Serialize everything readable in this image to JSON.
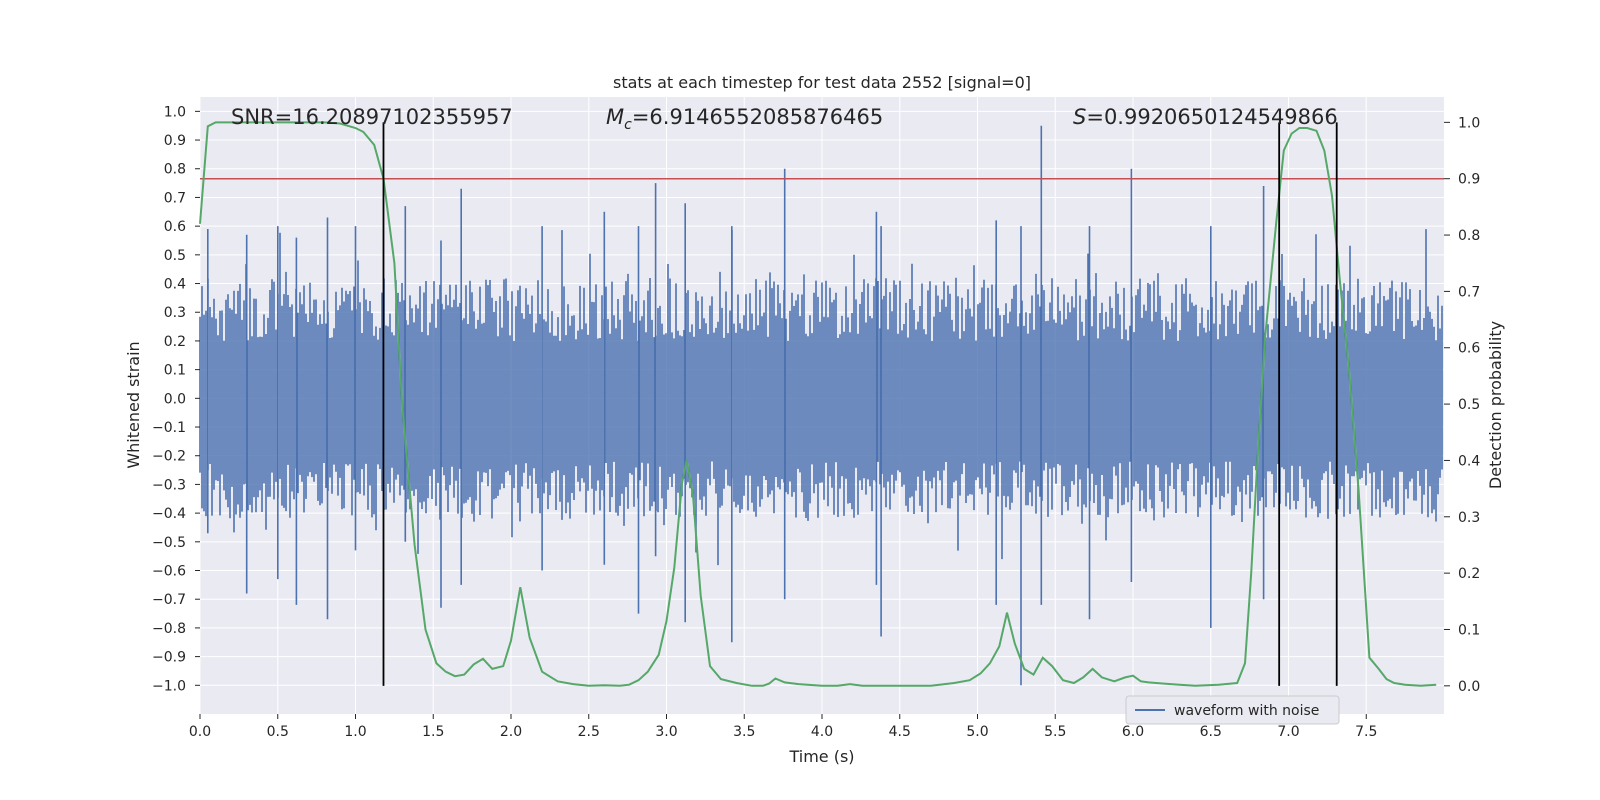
{
  "chart_data": {
    "type": "line",
    "title": "stats at each timestep for test data 2552 [signal=0]",
    "xlabel": "Time (s)",
    "ylabel": "Whitened strain",
    "y2label": "Detection probability",
    "xlim": [
      0,
      8
    ],
    "ylim": [
      -1.1,
      1.05
    ],
    "y2lim": [
      -0.05,
      1.045
    ],
    "x_ticks": [
      "0.0",
      "0.5",
      "1.0",
      "1.5",
      "2.0",
      "2.5",
      "3.0",
      "3.5",
      "4.0",
      "4.5",
      "5.0",
      "5.5",
      "6.0",
      "6.5",
      "7.0",
      "7.5"
    ],
    "y_ticks": [
      "1.0",
      "0.9",
      "0.8",
      "0.7",
      "0.6",
      "0.5",
      "0.4",
      "0.3",
      "0.2",
      "0.1",
      "0.0",
      "−0.1",
      "−0.2",
      "−0.3",
      "−0.4",
      "−0.5",
      "−0.6",
      "−0.7",
      "−0.8",
      "−0.9",
      "−1.0"
    ],
    "y2_ticks": [
      "1.0",
      "0.9",
      "0.8",
      "0.7",
      "0.6",
      "0.5",
      "0.4",
      "0.3",
      "0.2",
      "0.1",
      "0.0"
    ],
    "annotations": {
      "snr": "SNR=16.20897102355957",
      "mc_label": "M",
      "mc_sub": "c",
      "mc_value": "=6.9146552085876465",
      "s_label": "S",
      "s_value": "=0.9920650124549866"
    },
    "legend": {
      "label": "waveform with noise",
      "position": "lower-right"
    },
    "threshold": 0.9,
    "vertical_lines": [
      1.18,
      6.94,
      7.31
    ],
    "waveform_spikes": [
      {
        "x": 0.05,
        "hi": 0.59,
        "lo": -0.47
      },
      {
        "x": 0.3,
        "hi": 0.57,
        "lo": -0.68
      },
      {
        "x": 0.5,
        "hi": 0.6,
        "lo": -0.63
      },
      {
        "x": 0.62,
        "hi": 0.56,
        "lo": -0.72
      },
      {
        "x": 0.82,
        "hi": 0.63,
        "lo": -0.77
      },
      {
        "x": 1.0,
        "hi": 0.6,
        "lo": -0.53
      },
      {
        "x": 1.32,
        "hi": 0.67,
        "lo": -0.5
      },
      {
        "x": 1.55,
        "hi": 0.55,
        "lo": -0.73
      },
      {
        "x": 1.68,
        "hi": 0.73,
        "lo": -0.65
      },
      {
        "x": 2.2,
        "hi": 0.6,
        "lo": -0.6
      },
      {
        "x": 2.6,
        "hi": 0.65,
        "lo": -0.58
      },
      {
        "x": 2.82,
        "hi": 0.6,
        "lo": -0.75
      },
      {
        "x": 2.93,
        "hi": 0.75,
        "lo": -0.55
      },
      {
        "x": 3.12,
        "hi": 0.68,
        "lo": -0.78
      },
      {
        "x": 3.42,
        "hi": 0.6,
        "lo": -0.85
      },
      {
        "x": 3.76,
        "hi": 0.8,
        "lo": -0.7
      },
      {
        "x": 4.35,
        "hi": 0.65,
        "lo": -0.65
      },
      {
        "x": 4.38,
        "hi": 0.6,
        "lo": -0.83
      },
      {
        "x": 5.12,
        "hi": 0.62,
        "lo": -0.72
      },
      {
        "x": 5.28,
        "hi": 0.6,
        "lo": -1.0
      },
      {
        "x": 5.41,
        "hi": 0.95,
        "lo": -0.72
      },
      {
        "x": 5.72,
        "hi": 0.6,
        "lo": -0.77
      },
      {
        "x": 5.99,
        "hi": 0.8,
        "lo": -0.64
      },
      {
        "x": 6.5,
        "hi": 0.6,
        "lo": -0.8
      },
      {
        "x": 6.84,
        "hi": 0.74,
        "lo": -0.7
      }
    ],
    "detection_probability": {
      "x": [
        0.0,
        0.05,
        0.1,
        0.15,
        0.2,
        0.4,
        0.6,
        0.8,
        0.9,
        1.0,
        1.05,
        1.12,
        1.18,
        1.25,
        1.3,
        1.38,
        1.45,
        1.52,
        1.58,
        1.64,
        1.7,
        1.76,
        1.82,
        1.88,
        1.95,
        2.0,
        2.06,
        2.12,
        2.2,
        2.3,
        2.4,
        2.5,
        2.6,
        2.7,
        2.76,
        2.82,
        2.88,
        2.95,
        3.0,
        3.05,
        3.1,
        3.13,
        3.17,
        3.22,
        3.28,
        3.35,
        3.45,
        3.55,
        3.62,
        3.66,
        3.7,
        3.76,
        3.85,
        4.0,
        4.1,
        4.18,
        4.26,
        4.36,
        4.5,
        4.7,
        4.85,
        4.95,
        5.02,
        5.08,
        5.14,
        5.19,
        5.24,
        5.3,
        5.36,
        5.42,
        5.48,
        5.55,
        5.62,
        5.68,
        5.74,
        5.8,
        5.88,
        5.95,
        6.0,
        6.05,
        6.1,
        6.2,
        6.3,
        6.4,
        6.55,
        6.67,
        6.72,
        6.76,
        6.8,
        6.85,
        6.92,
        6.97,
        7.02,
        7.07,
        7.12,
        7.18,
        7.23,
        7.28,
        7.33,
        7.39,
        7.45,
        7.52,
        7.58,
        7.63,
        7.68,
        7.75,
        7.85,
        7.95
      ],
      "y": [
        0.82,
        0.993,
        1.0,
        1.0,
        1.0,
        1.0,
        1.0,
        1.0,
        0.998,
        0.99,
        0.983,
        0.96,
        0.9,
        0.75,
        0.5,
        0.25,
        0.1,
        0.04,
        0.025,
        0.017,
        0.02,
        0.038,
        0.048,
        0.03,
        0.035,
        0.08,
        0.175,
        0.085,
        0.025,
        0.008,
        0.003,
        0.0,
        0.001,
        0.0,
        0.002,
        0.01,
        0.025,
        0.055,
        0.115,
        0.21,
        0.36,
        0.4,
        0.34,
        0.16,
        0.035,
        0.012,
        0.005,
        0.0,
        0.0,
        0.004,
        0.013,
        0.006,
        0.003,
        0.0,
        0.0,
        0.003,
        0.0,
        0.0,
        0.0,
        0.0,
        0.005,
        0.01,
        0.022,
        0.04,
        0.07,
        0.13,
        0.075,
        0.03,
        0.02,
        0.05,
        0.035,
        0.01,
        0.005,
        0.015,
        0.03,
        0.015,
        0.008,
        0.015,
        0.018,
        0.008,
        0.006,
        0.004,
        0.002,
        0.0,
        0.002,
        0.005,
        0.04,
        0.2,
        0.4,
        0.62,
        0.82,
        0.95,
        0.98,
        0.99,
        0.99,
        0.985,
        0.95,
        0.87,
        0.72,
        0.56,
        0.35,
        0.05,
        0.03,
        0.012,
        0.005,
        0.002,
        0.0,
        0.002
      ]
    },
    "colors": {
      "background": "#eaeaf2",
      "grid": "#ffffff",
      "waveform": "#4c72b0",
      "probability": "#55a868",
      "threshold": "#c44e52",
      "vline": "#000000"
    }
  }
}
